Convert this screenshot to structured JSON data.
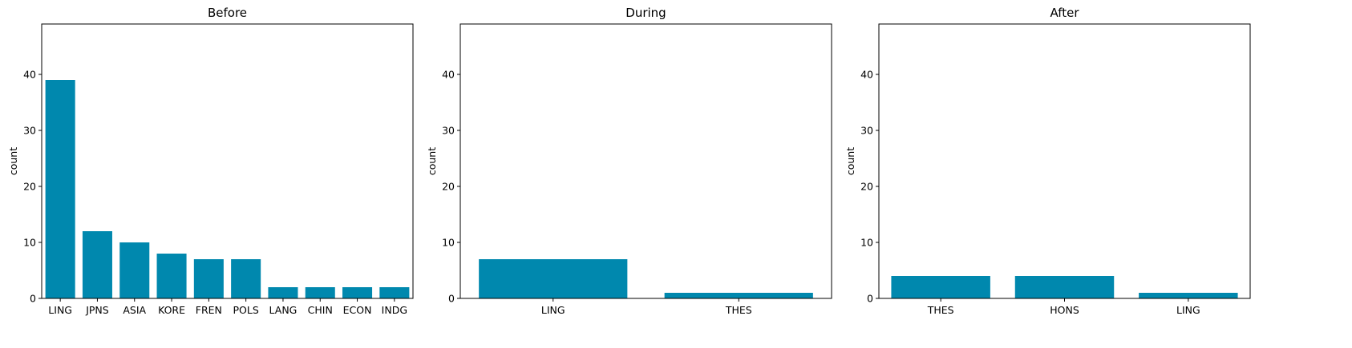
{
  "chart_data": [
    {
      "type": "bar",
      "title": "Before",
      "xlabel": "",
      "ylabel": "count",
      "ylim": [
        0,
        49
      ],
      "yticks": [
        0,
        10,
        20,
        30,
        40
      ],
      "categories": [
        "LING",
        "JPNS",
        "ASIA",
        "KORE",
        "FREN",
        "POLS",
        "LANG",
        "CHIN",
        "ECON",
        "INDG"
      ],
      "values": [
        39,
        12,
        10,
        8,
        7,
        7,
        2,
        2,
        2,
        2
      ],
      "bar_color": "#0088ae",
      "grid": false
    },
    {
      "type": "bar",
      "title": "During",
      "xlabel": "",
      "ylabel": "count",
      "ylim": [
        0,
        49
      ],
      "yticks": [
        0,
        10,
        20,
        30,
        40
      ],
      "categories": [
        "LING",
        "THES"
      ],
      "values": [
        7,
        1
      ],
      "bar_color": "#0088ae",
      "grid": false
    },
    {
      "type": "bar",
      "title": "After",
      "xlabel": "",
      "ylabel": "count",
      "ylim": [
        0,
        49
      ],
      "yticks": [
        0,
        10,
        20,
        30,
        40
      ],
      "categories": [
        "THES",
        "HONS",
        "LING"
      ],
      "values": [
        4,
        4,
        1
      ],
      "bar_color": "#0088ae",
      "grid": false
    }
  ]
}
